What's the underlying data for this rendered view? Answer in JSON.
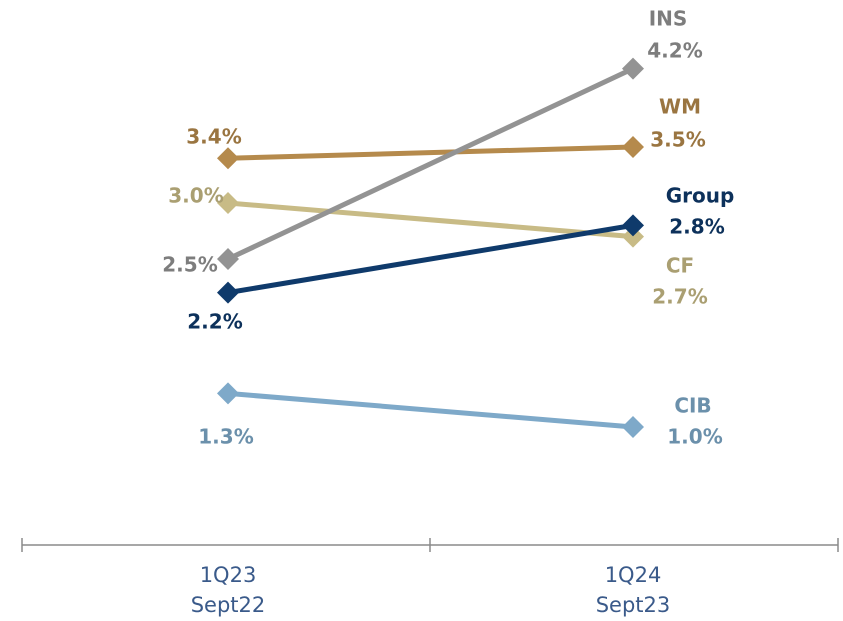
{
  "chart_data": {
    "type": "line",
    "categories": [
      [
        "1Q23",
        "Sept22"
      ],
      [
        "1Q24",
        "Sept23"
      ]
    ],
    "series": [
      {
        "name": "INS",
        "color": "#939393",
        "values": [
          2.5,
          4.2
        ],
        "value_labels": [
          "2.5%",
          "4.2%"
        ]
      },
      {
        "name": "WM",
        "color": "#b58a4c",
        "values": [
          3.4,
          3.5
        ],
        "value_labels": [
          "3.4%",
          "3.5%"
        ]
      },
      {
        "name": "Group",
        "color": "#0f3a6b",
        "values": [
          2.2,
          2.8
        ],
        "value_labels": [
          "2.2%",
          "2.8%"
        ]
      },
      {
        "name": "CF",
        "color": "#c8bb86",
        "values": [
          3.0,
          2.7
        ],
        "value_labels": [
          "3.0%",
          "2.7%"
        ]
      },
      {
        "name": "CIB",
        "color": "#7ea9c9",
        "values": [
          1.3,
          1.0
        ],
        "value_labels": [
          "1.3%",
          "1.0%"
        ]
      }
    ]
  }
}
